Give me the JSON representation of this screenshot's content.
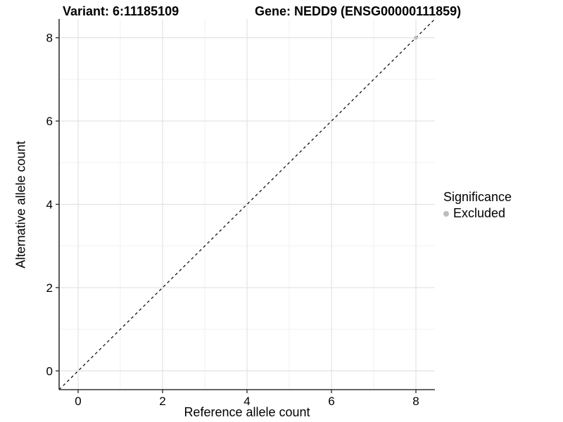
{
  "header": {
    "variant_title": "Variant: 6:11185109",
    "gene_title": "Gene: NEDD9 (ENSG00000111859)"
  },
  "chart_data": {
    "type": "scatter",
    "titles": [
      "Variant: 6:11185109",
      "Gene: NEDD9 (ENSG00000111859)"
    ],
    "xlabel": "Reference allele count",
    "ylabel": "Alternative allele count",
    "xlim": [
      -0.45,
      8.45
    ],
    "ylim": [
      -0.45,
      8.45
    ],
    "x_ticks": [
      0,
      2,
      4,
      6,
      8
    ],
    "y_ticks": [
      0,
      2,
      4,
      6,
      8
    ],
    "x_minor_ticks": [
      1,
      3,
      5,
      7
    ],
    "y_minor_ticks": [
      1,
      3,
      5,
      7
    ],
    "grid": "major and minor gridlines on white background",
    "reference_line": {
      "slope": 1,
      "intercept": 0,
      "style": "dashed",
      "color": "#000000"
    },
    "series": [
      {
        "name": "Excluded",
        "color": "#bdbdbd",
        "points": [
          {
            "x": 8,
            "y": 8
          }
        ]
      }
    ],
    "legend": {
      "title": "Significance",
      "position": "right",
      "entries": [
        {
          "label": "Excluded",
          "color": "#bdbdbd",
          "marker": "circle"
        }
      ]
    }
  },
  "colors": {
    "background": "#ffffff",
    "axis_line": "#333333",
    "grid_major": "#e2e2e2",
    "grid_minor": "#f1f1f1",
    "tick_text": "#000000",
    "point": "#bdbdbd",
    "reference_line": "#000000"
  }
}
